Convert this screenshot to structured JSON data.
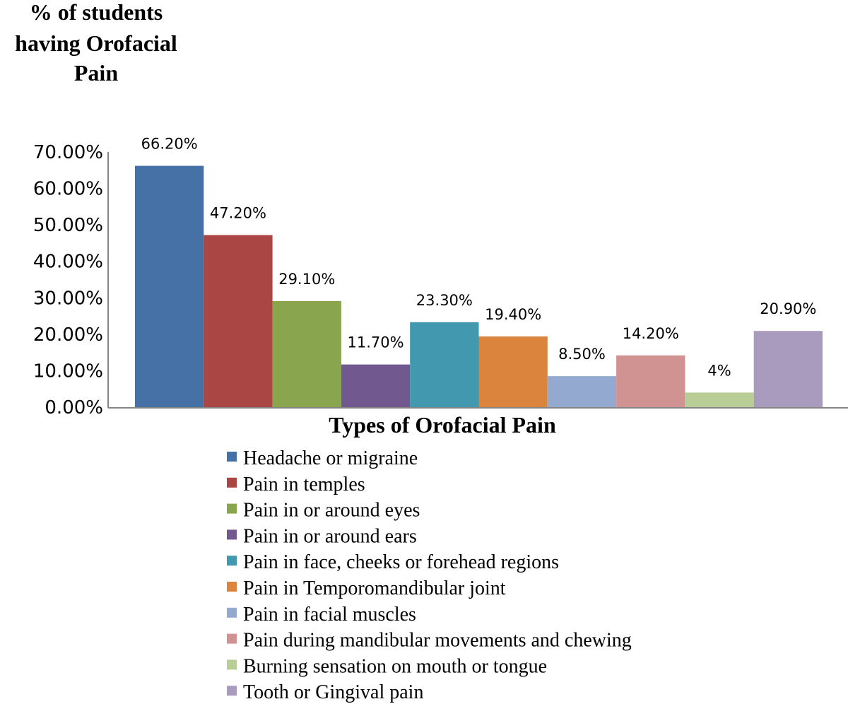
{
  "chart_data": {
    "type": "bar",
    "ylabel": "% of students having Orofacial Pain",
    "ylabel_lines": [
      "% of students",
      "having Orofacial",
      "Pain"
    ],
    "xlabel": "Types of Orofacial Pain",
    "ylim": [
      0,
      70
    ],
    "yticks": [
      0,
      10,
      20,
      30,
      40,
      50,
      60,
      70
    ],
    "ytick_labels": [
      "0.00%",
      "10.00%",
      "20.00%",
      "30.00%",
      "40.00%",
      "50.00%",
      "60.00%",
      "70.00%"
    ],
    "grid": false,
    "legend_position": "bottom",
    "series": [
      {
        "name": "Headache or migraine",
        "value": 66.2,
        "label": "66.20%",
        "color": "#4571A7"
      },
      {
        "name": "Pain in temples",
        "value": 47.2,
        "label": "47.20%",
        "color": "#AA4643"
      },
      {
        "name": "Pain in or around eyes",
        "value": 29.1,
        "label": "29.10%",
        "color": "#89A54E"
      },
      {
        "name": "Pain in or around ears",
        "value": 11.7,
        "label": "11.70%",
        "color": "#71588F"
      },
      {
        "name": "Pain in face, cheeks or forehead regions",
        "value": 23.3,
        "label": "23.30%",
        "color": "#4198AF"
      },
      {
        "name": "Pain in Temporomandibular joint",
        "value": 19.4,
        "label": "19.40%",
        "color": "#DB843D"
      },
      {
        "name": "Pain in facial muscles",
        "value": 8.5,
        "label": "8.50%",
        "color": "#93A9CF"
      },
      {
        "name": "Pain during mandibular movements and  chewing",
        "value": 14.2,
        "label": "14.20%",
        "color": "#D19392"
      },
      {
        "name": "Burning sensation on mouth or tongue",
        "value": 4,
        "label": "4%",
        "color": "#B9CD96"
      },
      {
        "name": "Tooth or Gingival pain",
        "value": 20.9,
        "label": "20.90%",
        "color": "#A99BBD"
      }
    ]
  }
}
